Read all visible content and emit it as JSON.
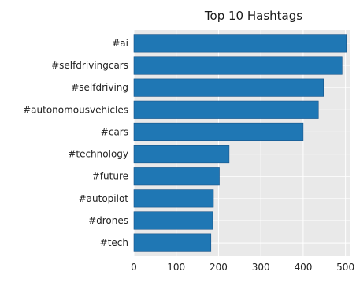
{
  "chart_data": {
    "type": "bar",
    "orientation": "horizontal",
    "title": "Top 10 Hashtags",
    "xlabel": "",
    "ylabel": "",
    "categories": [
      "#ai",
      "#selfdrivingcars",
      "#selfdriving",
      "#autonomousvehicles",
      "#cars",
      "#technology",
      "#future",
      "#autopilot",
      "#drones",
      "#tech"
    ],
    "values": [
      502,
      492,
      448,
      436,
      400,
      225,
      202,
      188,
      186,
      182
    ],
    "xlim": [
      0,
      510
    ],
    "xticks": [
      0,
      100,
      200,
      300,
      400,
      500
    ],
    "grid": true,
    "colors": {
      "bar": "#1f77b4",
      "bar_edge": "#16548a",
      "plot_bg": "#e9e9e9",
      "grid": "#ffffff"
    }
  }
}
